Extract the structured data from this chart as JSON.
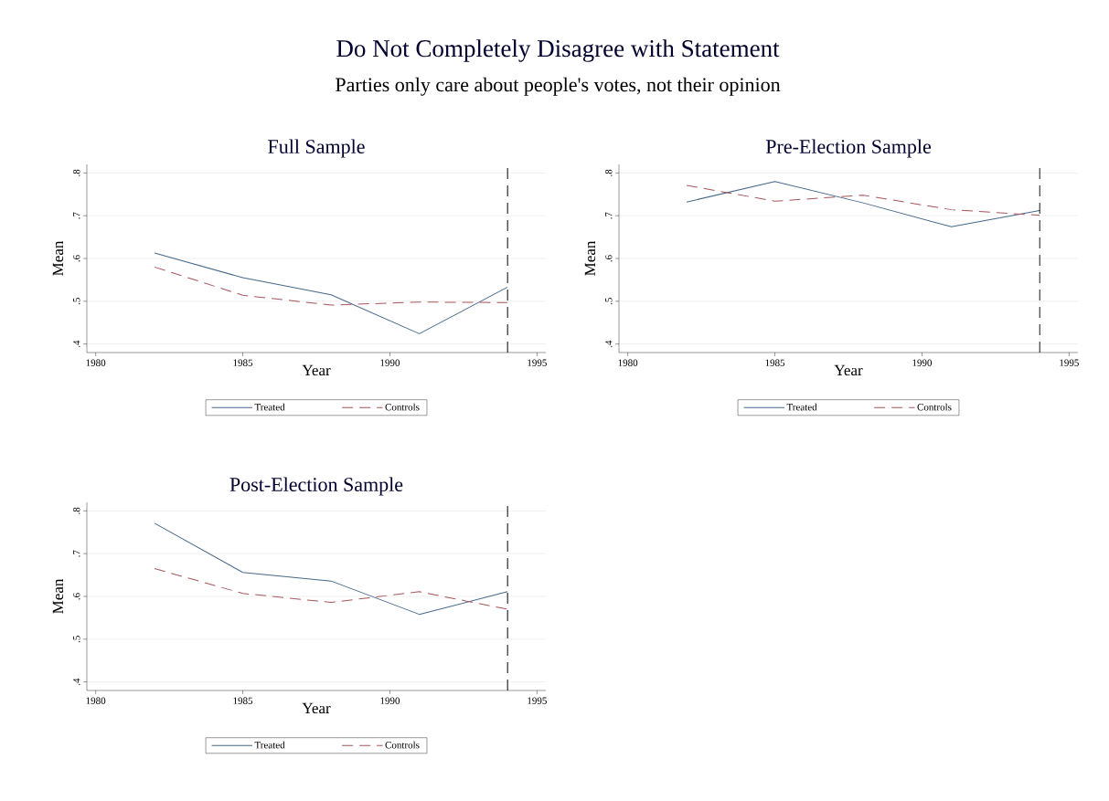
{
  "chart_data": [
    {
      "type": "line",
      "title": "Full Sample",
      "xlabel": "Year",
      "ylabel": "Mean",
      "annotations": [
        "Do Not Completely Disagree with Statement",
        "Parties only care about people's votes, not their opinion"
      ],
      "x": [
        1982,
        1985,
        1988,
        1991,
        1994
      ],
      "series": [
        {
          "name": "Treated",
          "color": "#46698c",
          "line_style": "solid",
          "values": [
            0.613,
            0.555,
            0.515,
            0.424,
            0.533
          ]
        },
        {
          "name": "Controls",
          "color": "#a8545a",
          "line_style": "dashed",
          "values": [
            0.58,
            0.514,
            0.491,
            0.498,
            0.497
          ]
        }
      ],
      "xlim": [
        1979.7,
        1995.3
      ],
      "xticks": [
        1980,
        1985,
        1990,
        1995
      ],
      "ylim": [
        0.38,
        0.82
      ],
      "yticks": [
        {
          "value": 0.4,
          "label": ".4"
        },
        {
          "value": 0.5,
          "label": ".5"
        },
        {
          "value": 0.6,
          "label": ".6"
        },
        {
          "value": 0.7,
          "label": ".7"
        },
        {
          "value": 0.8,
          "label": ".8"
        }
      ],
      "ref_lines": [
        {
          "axis": "x",
          "value": 1994,
          "color": "#000000",
          "line_style": "dashed"
        }
      ],
      "grid": "y",
      "legend": "bottom",
      "marker": "none"
    },
    {
      "type": "line",
      "title": "Pre-Election Sample",
      "xlabel": "Year",
      "ylabel": "Mean",
      "x": [
        1982,
        1985,
        1988,
        1991,
        1994
      ],
      "series": [
        {
          "name": "Treated",
          "color": "#46698c",
          "line_style": "solid",
          "values": [
            0.732,
            0.78,
            0.73,
            0.674,
            0.712
          ]
        },
        {
          "name": "Controls",
          "color": "#a8545a",
          "line_style": "dashed",
          "values": [
            0.771,
            0.734,
            0.748,
            0.714,
            0.701
          ]
        }
      ],
      "xlim": [
        1979.7,
        1995.3
      ],
      "xticks": [
        1980,
        1985,
        1990,
        1995
      ],
      "ylim": [
        0.38,
        0.82
      ],
      "yticks": [
        {
          "value": 0.4,
          "label": ".4"
        },
        {
          "value": 0.5,
          "label": ".5"
        },
        {
          "value": 0.6,
          "label": ".6"
        },
        {
          "value": 0.7,
          "label": ".7"
        },
        {
          "value": 0.8,
          "label": ".8"
        }
      ],
      "ref_lines": [
        {
          "axis": "x",
          "value": 1994,
          "color": "#000000",
          "line_style": "dashed"
        }
      ],
      "grid": "y",
      "legend": "bottom",
      "marker": "none"
    },
    {
      "type": "line",
      "title": "Post-Election Sample",
      "xlabel": "Year",
      "ylabel": "Mean",
      "x": [
        1982,
        1985,
        1988,
        1991,
        1994
      ],
      "series": [
        {
          "name": "Treated",
          "color": "#46698c",
          "line_style": "solid",
          "values": [
            0.771,
            0.656,
            0.636,
            0.558,
            0.611
          ]
        },
        {
          "name": "Controls",
          "color": "#a8545a",
          "line_style": "dashed",
          "values": [
            0.665,
            0.607,
            0.586,
            0.611,
            0.57
          ]
        }
      ],
      "xlim": [
        1979.7,
        1995.3
      ],
      "xticks": [
        1980,
        1985,
        1990,
        1995
      ],
      "ylim": [
        0.38,
        0.82
      ],
      "yticks": [
        {
          "value": 0.4,
          "label": ".4"
        },
        {
          "value": 0.5,
          "label": ".5"
        },
        {
          "value": 0.6,
          "label": ".6"
        },
        {
          "value": 0.7,
          "label": ".7"
        },
        {
          "value": 0.8,
          "label": ".8"
        }
      ],
      "ref_lines": [
        {
          "axis": "x",
          "value": 1994,
          "color": "#000000",
          "line_style": "dashed"
        }
      ],
      "grid": "y",
      "legend": "bottom",
      "marker": "none"
    }
  ]
}
